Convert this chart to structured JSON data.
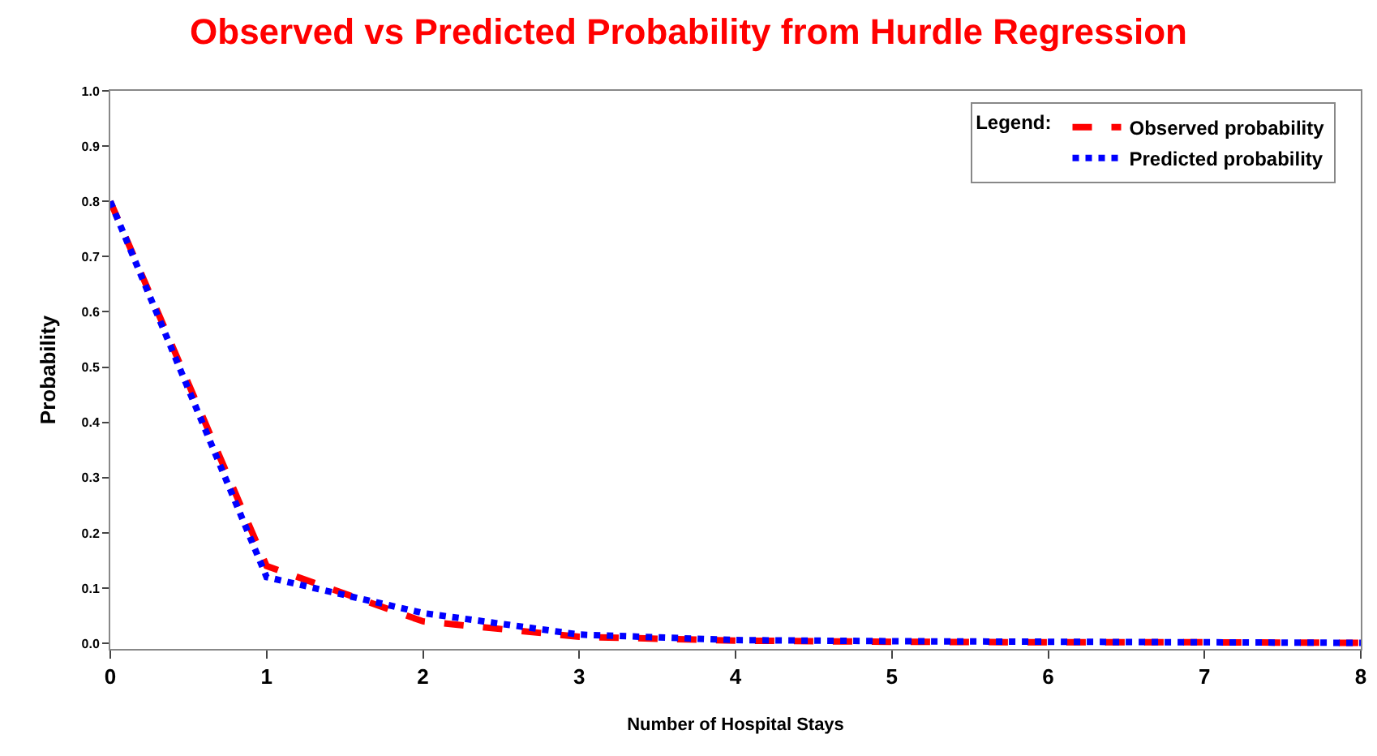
{
  "chart_data": {
    "type": "line",
    "title": "Observed vs Predicted Probability from Hurdle Regression",
    "xlabel": "Number of Hospital Stays",
    "ylabel": "Probability",
    "legend_title": "Legend:",
    "x": [
      0,
      1,
      2,
      3,
      4,
      5,
      6,
      7,
      8
    ],
    "series": [
      {
        "name": "Observed probability",
        "color": "#ff0000",
        "line_style": "dashed",
        "values": [
          0.8,
          0.14,
          0.04,
          0.012,
          0.005,
          0.003,
          0.002,
          0.002,
          0.001
        ]
      },
      {
        "name": "Predicted probability",
        "color": "#0000ff",
        "line_style": "dotted",
        "values": [
          0.8,
          0.12,
          0.055,
          0.016,
          0.006,
          0.004,
          0.003,
          0.002,
          0.001
        ]
      }
    ],
    "xlim": [
      0,
      8
    ],
    "xticks": [
      0,
      1,
      2,
      3,
      4,
      5,
      6,
      7,
      8
    ],
    "ylim": [
      -0.01,
      1.0
    ],
    "yticks": [
      {
        "value": 0,
        "label": "0.0"
      },
      0.1,
      0.2,
      0.3,
      0.4,
      0.5,
      0.6,
      0.7,
      0.8,
      0.9,
      {
        "value": 1,
        "label": "1.0"
      }
    ],
    "grid": false,
    "legend": "top right",
    "marker": "none"
  }
}
